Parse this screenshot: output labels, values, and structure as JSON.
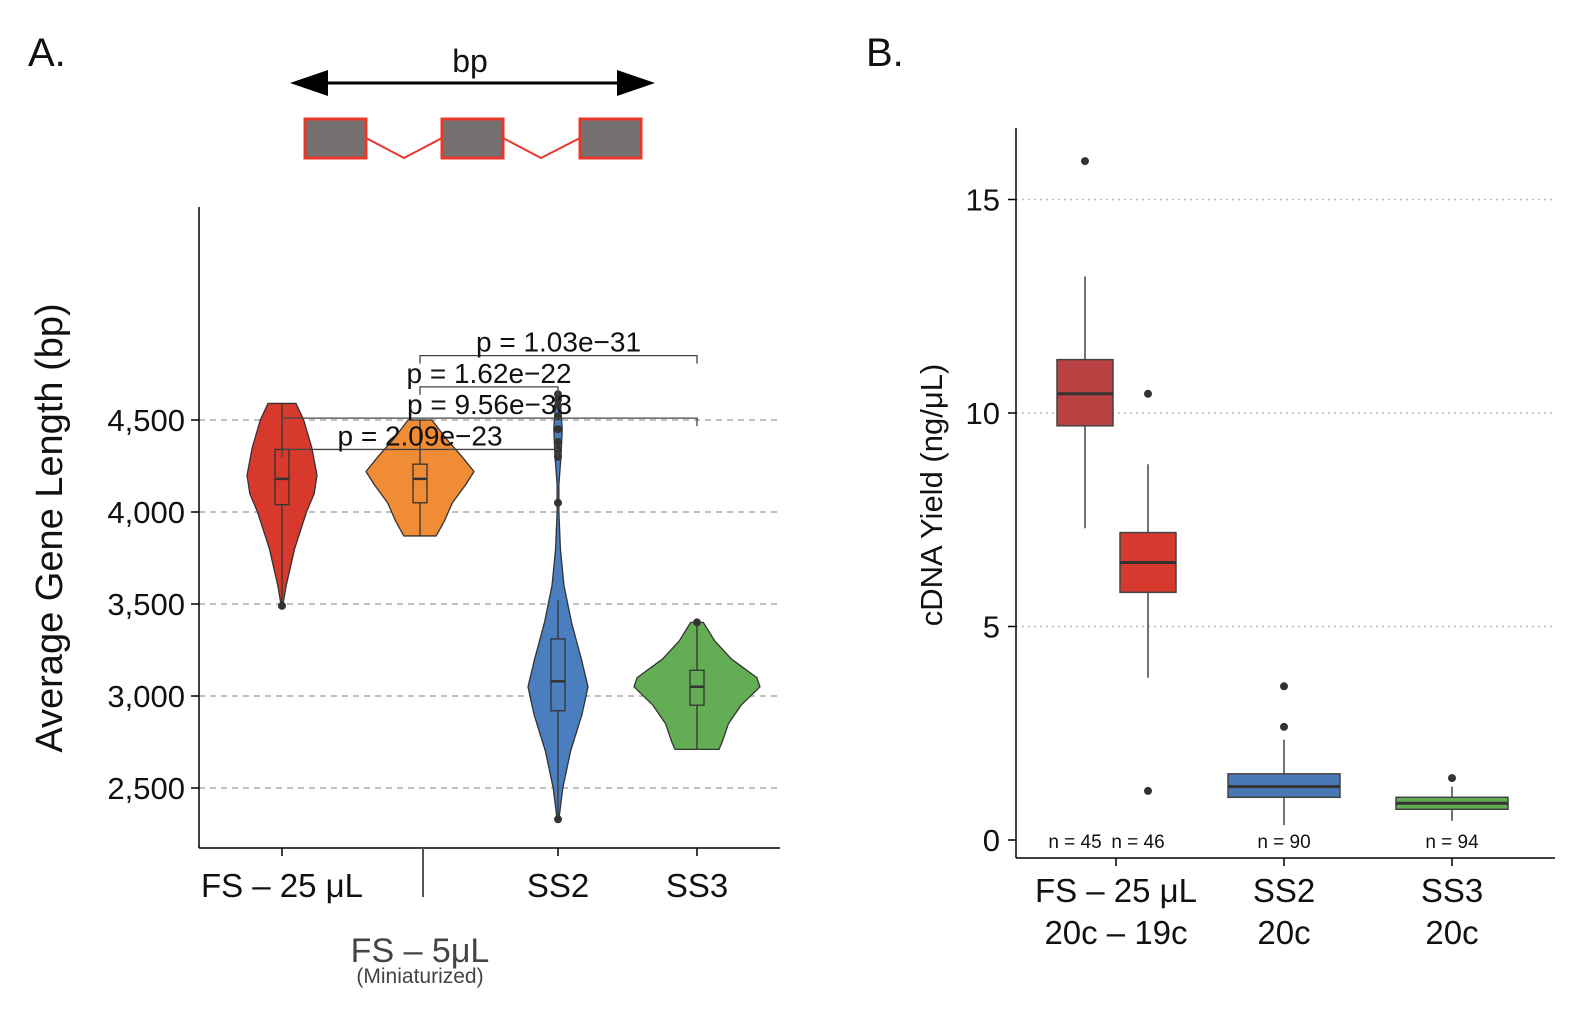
{
  "panel_labels": {
    "a": "A.",
    "b": "B."
  },
  "diagram": {
    "label": "bp",
    "exon_fill": "#757170",
    "exon_stroke": "#e8382b"
  },
  "chart_data": [
    {
      "type": "violin",
      "panel": "A.",
      "ylabel": "Average Gene Length (bp)",
      "ylim": [
        2200,
        5000
      ],
      "yticks": [
        2500,
        3000,
        3500,
        4000,
        4500
      ],
      "ytick_labels": [
        "2,500",
        "3,000",
        "3,500",
        "4,000",
        "4,500"
      ],
      "grid": "horizontal dashed",
      "categories": [
        "FS – 25 μL",
        "FS – 5μL",
        "SS2",
        "SS3"
      ],
      "category_sublabel": "(Miniaturized)",
      "series": [
        {
          "category": "FS – 25 μL",
          "color": "#d73a2c",
          "min": 3490,
          "q1": 4040,
          "median": 4180,
          "q3": 4340,
          "max": 4590,
          "outliers": [
            3490
          ],
          "density": [
            [
              4590,
              0.4
            ],
            [
              4500,
              0.62
            ],
            [
              4350,
              0.85
            ],
            [
              4200,
              1.0
            ],
            [
              4100,
              0.92
            ],
            [
              4000,
              0.7
            ],
            [
              3800,
              0.36
            ],
            [
              3600,
              0.12
            ],
            [
              3490,
              0.02
            ]
          ]
        },
        {
          "category": "FS – 5μL",
          "color": "#f08c35",
          "min": 3870,
          "q1": 4050,
          "median": 4180,
          "q3": 4260,
          "max": 4500,
          "outliers": [],
          "density": [
            [
              4500,
              0.22
            ],
            [
              4400,
              0.48
            ],
            [
              4300,
              0.78
            ],
            [
              4220,
              1.0
            ],
            [
              4150,
              0.85
            ],
            [
              4050,
              0.6
            ],
            [
              3950,
              0.45
            ],
            [
              3870,
              0.3
            ]
          ]
        },
        {
          "category": "SS2",
          "color": "#4a7ebf",
          "min": 2330,
          "q1": 2920,
          "median": 3080,
          "q3": 3310,
          "max": 3520,
          "outliers": [
            2330,
            4050,
            4300,
            4340,
            4380,
            4450,
            4520,
            4580,
            4610,
            4640
          ],
          "density": [
            [
              4640,
              0.06
            ],
            [
              4450,
              0.14
            ],
            [
              4300,
              0.1
            ],
            [
              4150,
              0.03
            ],
            [
              4000,
              0.03
            ],
            [
              3800,
              0.08
            ],
            [
              3600,
              0.2
            ],
            [
              3400,
              0.45
            ],
            [
              3200,
              0.78
            ],
            [
              3050,
              1.0
            ],
            [
              2900,
              0.8
            ],
            [
              2700,
              0.42
            ],
            [
              2500,
              0.16
            ],
            [
              2330,
              0.03
            ]
          ]
        },
        {
          "category": "SS3",
          "color": "#63ad54",
          "min": 2710,
          "q1": 2950,
          "median": 3050,
          "q3": 3140,
          "max": 3400,
          "outliers": [
            3400
          ],
          "density": [
            [
              3400,
              0.1
            ],
            [
              3300,
              0.28
            ],
            [
              3200,
              0.55
            ],
            [
              3100,
              0.95
            ],
            [
              3050,
              1.0
            ],
            [
              2950,
              0.7
            ],
            [
              2850,
              0.5
            ],
            [
              2750,
              0.4
            ],
            [
              2710,
              0.35
            ]
          ]
        }
      ],
      "comparisons": [
        {
          "from": "FS – 5μL",
          "to": "SS3",
          "label": "p = 1.03e−31",
          "y": 4850
        },
        {
          "from": "FS – 5μL",
          "to": "SS2",
          "label": "p = 1.62e−22",
          "y": 4680
        },
        {
          "from": "FS – 25 μL",
          "to": "SS3",
          "label": "p = 9.56e−33",
          "y": 4510
        },
        {
          "from": "FS – 25 μL",
          "to": "SS2",
          "label": "p = 2.09e−23",
          "y": 4340
        }
      ]
    },
    {
      "type": "box",
      "panel": "B.",
      "ylabel": "cDNA Yield (ng/μL)",
      "ylim": [
        0,
        16.5
      ],
      "yticks": [
        0,
        5,
        10,
        15
      ],
      "grid": "horizontal dotted",
      "group_labels": [
        [
          "FS – 25 μL",
          "20c – 19c"
        ],
        [
          "SS2",
          "20c"
        ],
        [
          "SS3",
          "20c"
        ]
      ],
      "series": [
        {
          "n_label": "n = 45",
          "color": "#b94141",
          "min": 7.3,
          "q1": 9.7,
          "median": 10.45,
          "q3": 11.25,
          "max": 13.2,
          "outliers": [
            15.9
          ]
        },
        {
          "n_label": "n = 46",
          "color": "#d63a2f",
          "min": 3.8,
          "q1": 5.8,
          "median": 6.5,
          "q3": 7.2,
          "max": 8.8,
          "outliers": [
            10.45,
            1.15
          ]
        },
        {
          "n_label": "n = 90",
          "color": "#4878b5",
          "min": 0.35,
          "q1": 1.0,
          "median": 1.25,
          "q3": 1.55,
          "max": 2.35,
          "outliers": [
            2.65,
            3.6
          ]
        },
        {
          "n_label": "n = 94",
          "color": "#62ad52",
          "min": 0.45,
          "q1": 0.72,
          "median": 0.86,
          "q3": 1.0,
          "max": 1.25,
          "outliers": [
            1.45
          ]
        }
      ]
    }
  ]
}
